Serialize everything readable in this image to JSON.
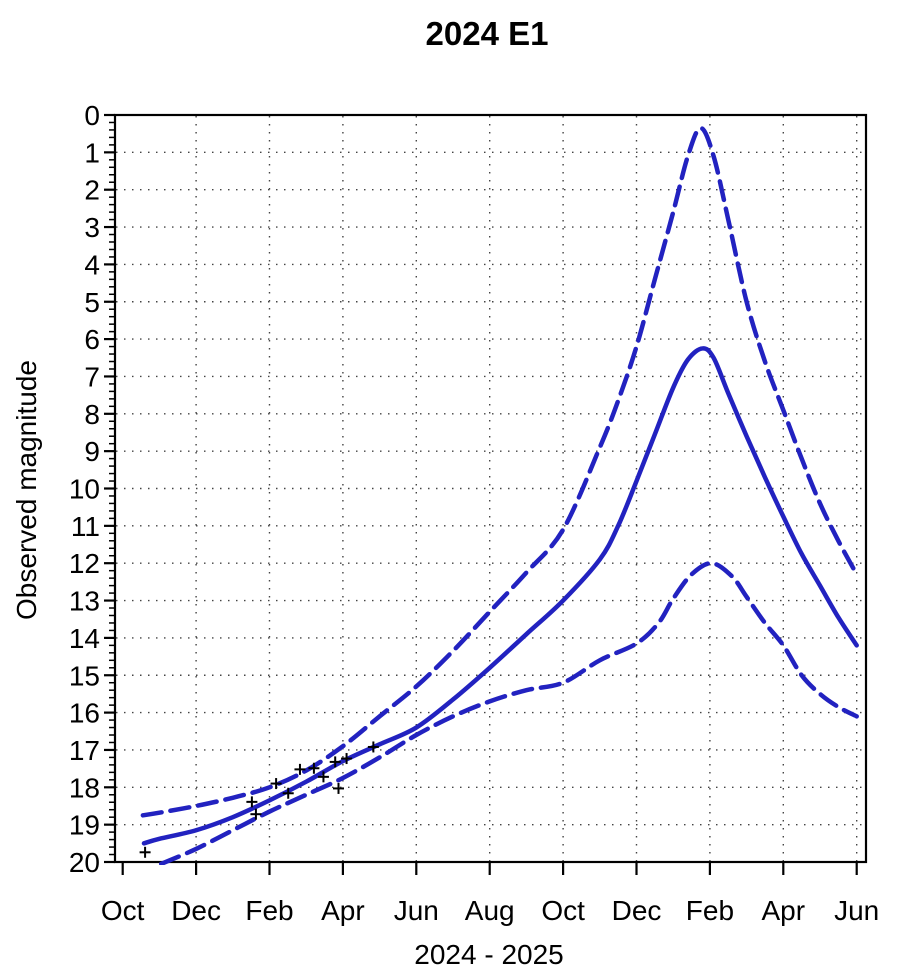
{
  "title": "2024 E1",
  "axes": {
    "x_label": "2024 - 2025",
    "y_label": "Observed magnitude",
    "x_tick_labels": [
      "Oct",
      "Dec",
      "Feb",
      "Apr",
      "Jun",
      "Aug",
      "Oct",
      "Dec",
      "Feb",
      "Apr",
      "Jun"
    ],
    "y_ticks": {
      "min": 0,
      "max": 20,
      "major_step": 1,
      "minor_step": 0.2
    }
  },
  "colors": {
    "curve_blue": "#2222c0",
    "marker_black": "#000000",
    "axis_black": "#000000",
    "grid_dot": "#444444",
    "background": "#ffffff"
  },
  "chart_data": {
    "type": "line",
    "title": "2024 E1",
    "xlabel": "2024 - 2025",
    "ylabel": "Observed magnitude",
    "x_unit": "months since Oct 2023 tick (0 = Oct 2023, 20 = Jun 2025)",
    "xlim": [
      -0.21,
      20.25
    ],
    "ylim": [
      0,
      20
    ],
    "y_axis_inverted": true,
    "grid": "dotted horizontal lines at each integer magnitude 1-19; dotted vertical lines at each labeled 2-month tick (Dec 2023 onward)",
    "legend_position": "none",
    "x_ticks": [
      [
        0,
        "Oct"
      ],
      [
        2,
        "Dec"
      ],
      [
        4,
        "Feb"
      ],
      [
        6,
        "Apr"
      ],
      [
        8,
        "Jun"
      ],
      [
        10,
        "Aug"
      ],
      [
        12,
        "Oct"
      ],
      [
        14,
        "Dec"
      ],
      [
        16,
        "Feb"
      ],
      [
        18,
        "Apr"
      ],
      [
        20,
        "Jun"
      ]
    ],
    "series": [
      {
        "name": "predicted magnitude",
        "style": "solid",
        "points": [
          [
            0.58,
            19.5
          ],
          [
            1,
            19.38
          ],
          [
            2,
            19.15
          ],
          [
            3,
            18.8
          ],
          [
            4,
            18.35
          ],
          [
            5,
            17.85
          ],
          [
            6,
            17.3
          ],
          [
            7,
            16.85
          ],
          [
            8,
            16.4
          ],
          [
            9,
            15.65
          ],
          [
            10,
            14.8
          ],
          [
            11,
            13.9
          ],
          [
            12,
            13.0
          ],
          [
            13,
            11.9
          ],
          [
            13.5,
            11.0
          ],
          [
            14,
            9.8
          ],
          [
            14.5,
            8.55
          ],
          [
            15,
            7.3
          ],
          [
            15.4,
            6.55
          ],
          [
            15.8,
            6.25
          ],
          [
            16.1,
            6.5
          ],
          [
            16.5,
            7.45
          ],
          [
            17,
            8.6
          ],
          [
            17.5,
            9.7
          ],
          [
            18,
            10.75
          ],
          [
            18.5,
            11.75
          ],
          [
            19,
            12.6
          ],
          [
            19.5,
            13.45
          ],
          [
            20,
            14.2
          ]
        ]
      },
      {
        "name": "bright uncertainty limit",
        "style": "dashed",
        "points": [
          [
            0.55,
            18.75
          ],
          [
            1,
            18.68
          ],
          [
            2,
            18.5
          ],
          [
            3,
            18.28
          ],
          [
            4,
            18.0
          ],
          [
            5,
            17.55
          ],
          [
            6,
            16.9
          ],
          [
            7,
            16.1
          ],
          [
            8,
            15.3
          ],
          [
            9,
            14.35
          ],
          [
            10,
            13.3
          ],
          [
            11,
            12.25
          ],
          [
            12,
            11.1
          ],
          [
            13,
            8.9
          ],
          [
            13.5,
            7.65
          ],
          [
            14,
            6.2
          ],
          [
            14.5,
            4.4
          ],
          [
            15,
            2.6
          ],
          [
            15.4,
            1.1
          ],
          [
            15.75,
            0.35
          ],
          [
            16.1,
            1.1
          ],
          [
            16.5,
            2.8
          ],
          [
            17,
            5.0
          ],
          [
            17.5,
            6.6
          ],
          [
            18,
            7.9
          ],
          [
            18.5,
            9.2
          ],
          [
            19,
            10.4
          ],
          [
            19.5,
            11.4
          ],
          [
            20,
            12.3
          ]
        ]
      },
      {
        "name": "faint uncertainty limit",
        "style": "dashed",
        "points": [
          [
            1.05,
            20.05
          ],
          [
            2,
            19.65
          ],
          [
            3,
            19.15
          ],
          [
            4,
            18.65
          ],
          [
            5,
            18.2
          ],
          [
            6,
            17.75
          ],
          [
            7,
            17.2
          ],
          [
            8,
            16.6
          ],
          [
            9,
            16.1
          ],
          [
            10,
            15.7
          ],
          [
            11,
            15.4
          ],
          [
            12,
            15.2
          ],
          [
            13,
            14.6
          ],
          [
            14,
            14.15
          ],
          [
            14.6,
            13.6
          ],
          [
            15,
            12.95
          ],
          [
            15.5,
            12.3
          ],
          [
            16.05,
            12.0
          ],
          [
            16.6,
            12.35
          ],
          [
            17,
            12.9
          ],
          [
            17.5,
            13.6
          ],
          [
            18,
            14.2
          ],
          [
            18.5,
            15.0
          ],
          [
            19,
            15.5
          ],
          [
            19.5,
            15.85
          ],
          [
            20,
            16.1
          ]
        ]
      }
    ],
    "observations": {
      "name": "observed magnitudes",
      "marker": "+",
      "points": [
        [
          0.61,
          19.74
        ],
        [
          3.52,
          18.39
        ],
        [
          3.63,
          18.72
        ],
        [
          4.18,
          17.9
        ],
        [
          4.51,
          18.16
        ],
        [
          4.83,
          17.52
        ],
        [
          5.21,
          17.49
        ],
        [
          5.47,
          17.72
        ],
        [
          5.79,
          17.32
        ],
        [
          5.88,
          18.03
        ],
        [
          6.1,
          17.23
        ],
        [
          6.83,
          16.92
        ]
      ]
    }
  }
}
